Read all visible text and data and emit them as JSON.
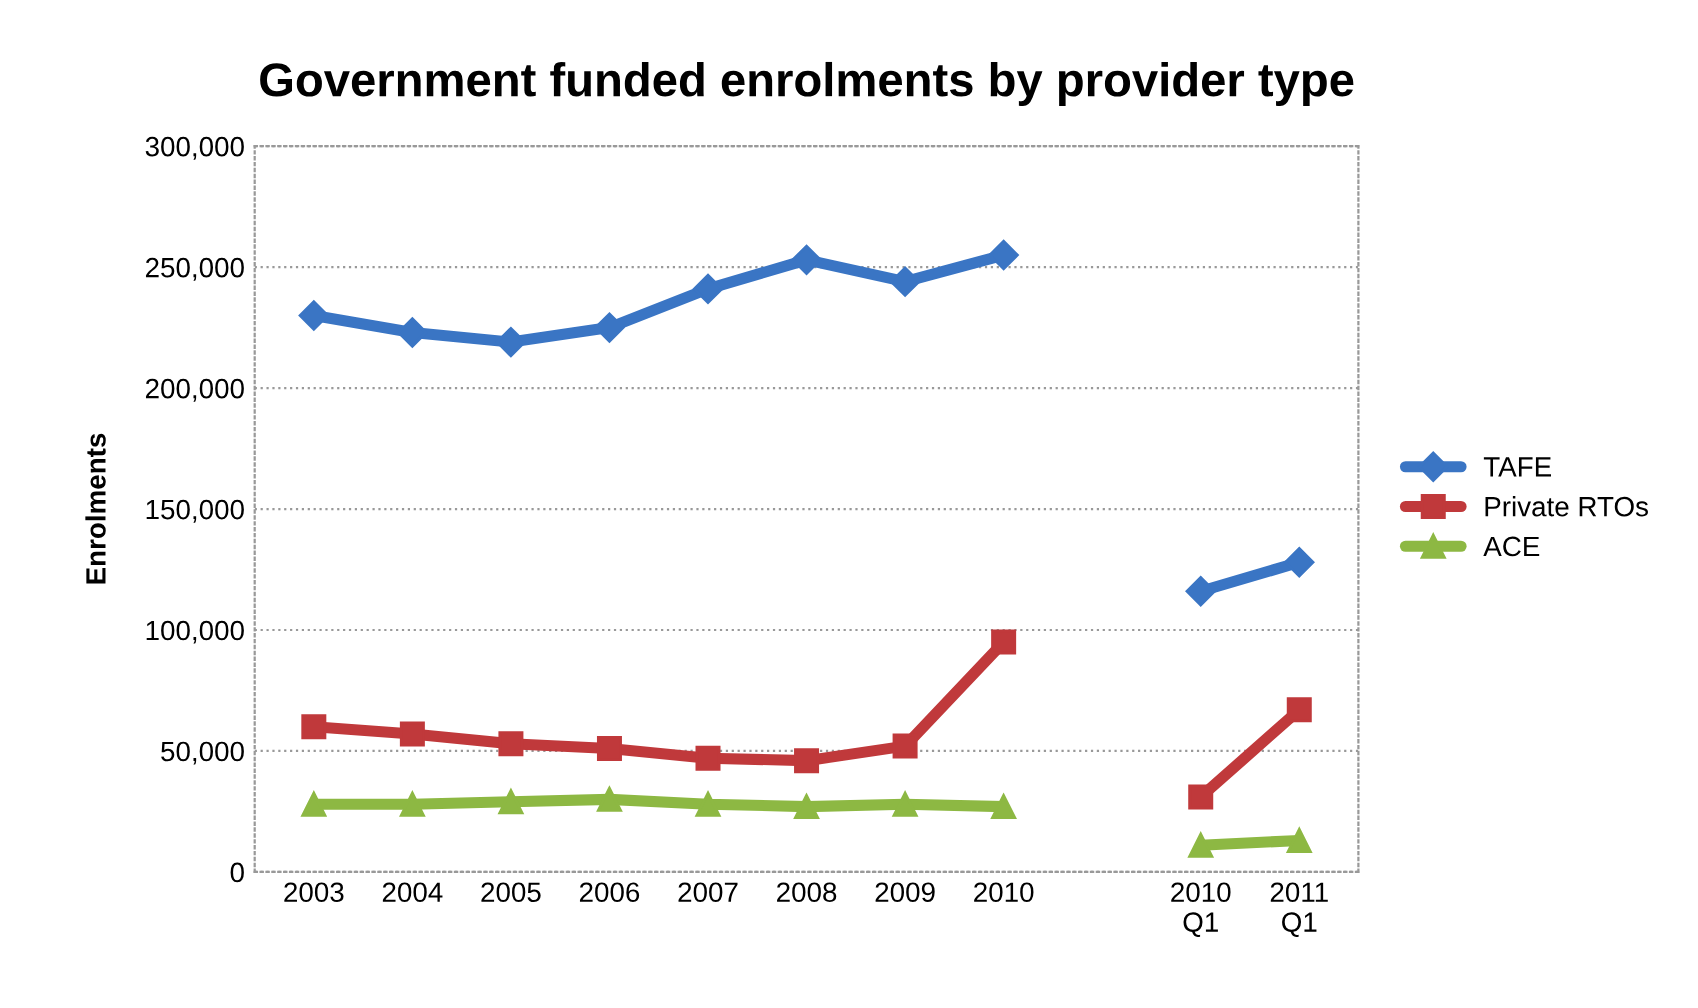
{
  "chart_data": {
    "type": "line",
    "title": "Government funded enrolments by provider type",
    "ylabel": "Enrolments",
    "categories": [
      "2003",
      "2004",
      "2005",
      "2006",
      "2007",
      "2008",
      "2009",
      "2010",
      null,
      "2010\nQ1",
      "2011\nQ1"
    ],
    "series": [
      {
        "name": "TAFE",
        "color": "#3a75c4",
        "marker": "diamond",
        "values": [
          230000,
          223000,
          219000,
          225000,
          241000,
          253000,
          244000,
          255000,
          null,
          116000,
          128000
        ]
      },
      {
        "name": "Private RTOs",
        "color": "#c0393b",
        "marker": "square",
        "values": [
          60000,
          57000,
          53000,
          51000,
          47000,
          46000,
          52000,
          95000,
          null,
          31000,
          67000
        ]
      },
      {
        "name": "ACE",
        "color": "#8db843",
        "marker": "triangle",
        "values": [
          28000,
          28000,
          29000,
          30000,
          28000,
          27000,
          28000,
          27000,
          null,
          11000,
          13000
        ]
      }
    ],
    "ylim": [
      0,
      300000
    ],
    "yticks": [
      {
        "value": 0,
        "label": "0"
      },
      {
        "value": 50000,
        "label": "50,000"
      },
      {
        "value": 100000,
        "label": "100,000"
      },
      {
        "value": 150000,
        "label": "150,000"
      },
      {
        "value": 200000,
        "label": "200,000"
      },
      {
        "value": 250000,
        "label": "250,000"
      },
      {
        "value": 300000,
        "label": "300,000"
      }
    ],
    "grid": "y",
    "legend": "right",
    "line_style": "solid"
  }
}
